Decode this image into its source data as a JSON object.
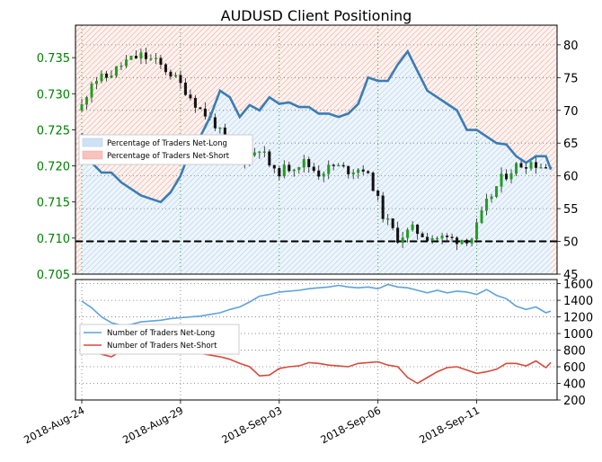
{
  "chart_data": [
    {
      "type": "line+candlestick",
      "title": "AUDUSD Client Positioning",
      "x_tick_labels": [
        "2018-Aug-24",
        "2018-Aug-29",
        "2018-Sep-03",
        "2018-Sep-06",
        "2018-Sep-11"
      ],
      "x_tick_indices": [
        0,
        20,
        40,
        60,
        80
      ],
      "n_periods": 96,
      "left_axis": {
        "ylim": [
          0.705,
          0.7395
        ],
        "ticks": [
          0.705,
          0.71,
          0.715,
          0.72,
          0.725,
          0.73,
          0.735
        ],
        "tick_labels": [
          "0.705",
          "0.710",
          "0.715",
          "0.720",
          "0.725",
          "0.730",
          "0.735"
        ],
        "color": "#008000"
      },
      "right_axis": {
        "ylim": [
          45,
          83
        ],
        "ticks": [
          45,
          50,
          55,
          60,
          65,
          70,
          75,
          80
        ],
        "tick_labels": [
          "45",
          "50",
          "55",
          "60",
          "65",
          "70",
          "75",
          "80"
        ]
      },
      "grid": true,
      "legend": {
        "placement": "center-left",
        "entries": [
          "Percentage of Traders Net-Long",
          "Percentage of Traders Net-Short"
        ]
      },
      "reference_line": {
        "y": 50,
        "style": "dashed",
        "color": "#000000"
      },
      "series": [
        {
          "name": "Percentage of Traders Net-Long",
          "color": "#3a7db5",
          "fill": "#dbe9f7",
          "x": [
            0,
            2,
            4,
            6,
            8,
            10,
            12,
            14,
            16,
            18,
            20,
            22,
            24,
            26,
            28,
            30,
            32,
            34,
            36,
            38,
            40,
            42,
            44,
            46,
            48,
            50,
            52,
            54,
            56,
            58,
            60,
            62,
            64,
            66,
            68,
            70,
            72,
            74,
            76,
            78,
            80,
            82,
            84,
            86,
            88,
            90,
            92,
            94,
            95
          ],
          "values": [
            66.5,
            62.0,
            60.5,
            60.5,
            59.0,
            58.0,
            57.0,
            56.5,
            56.0,
            57.5,
            60.0,
            64.0,
            66.0,
            69.0,
            73.0,
            72.0,
            69.0,
            70.8,
            70.0,
            72.0,
            71.0,
            71.2,
            70.5,
            70.5,
            69.5,
            69.5,
            69.0,
            69.5,
            71.0,
            75.0,
            74.5,
            74.5,
            77.0,
            79.0,
            76.0,
            73.0,
            72.0,
            71.0,
            70.0,
            67.0,
            67.0,
            66.0,
            65.0,
            64.8,
            63.0,
            62.0,
            63.0,
            63.0,
            61.0
          ]
        },
        {
          "name": "Percentage of Traders Net-Short",
          "color": "#e88080",
          "fill": "#fbd9d4"
        },
        {
          "name": "AUDUSD price",
          "kind": "candlestick",
          "up_color": "#1f9e1f",
          "down_color": "#111111",
          "close_anchors_x": [
            0,
            2,
            5,
            9,
            12,
            15,
            18,
            21,
            24,
            27,
            30,
            33,
            36,
            39,
            42,
            45,
            48,
            51,
            54,
            57,
            59,
            61,
            64,
            67,
            70,
            73,
            76,
            79,
            82,
            85,
            88,
            91,
            94,
            95
          ],
          "close_anchors": [
            0.7283,
            0.7318,
            0.7323,
            0.7345,
            0.7353,
            0.7344,
            0.7328,
            0.7305,
            0.7278,
            0.7258,
            0.7222,
            0.7208,
            0.7226,
            0.719,
            0.7198,
            0.7205,
            0.719,
            0.72,
            0.7194,
            0.7197,
            0.7172,
            0.7132,
            0.71,
            0.7112,
            0.7102,
            0.71,
            0.7098,
            0.71,
            0.7148,
            0.7182,
            0.72,
            0.7205,
            0.7198,
            0.7205
          ]
        }
      ]
    },
    {
      "type": "line",
      "right_axis": {
        "ylim": [
          200,
          1650
        ],
        "ticks": [
          200,
          400,
          600,
          800,
          1000,
          1200,
          1400,
          1600
        ],
        "tick_labels": [
          "200",
          "400",
          "600",
          "800",
          "1000",
          "1200",
          "1400",
          "1600"
        ]
      },
      "grid": true,
      "legend": {
        "placement": "center-left",
        "entries": [
          "Number of Traders Net-Long",
          "Number of Traders Net-Short"
        ]
      },
      "series": [
        {
          "name": "Number of Traders Net-Long",
          "color": "#5fa3dc",
          "x": [
            0,
            2,
            4,
            6,
            8,
            10,
            12,
            14,
            16,
            18,
            20,
            22,
            24,
            26,
            28,
            30,
            32,
            34,
            36,
            38,
            40,
            42,
            44,
            46,
            48,
            50,
            52,
            54,
            56,
            58,
            60,
            62,
            64,
            66,
            68,
            70,
            72,
            74,
            76,
            78,
            80,
            82,
            84,
            86,
            88,
            90,
            92,
            94,
            95
          ],
          "values": [
            1390,
            1310,
            1200,
            1130,
            1100,
            1110,
            1140,
            1150,
            1160,
            1180,
            1190,
            1200,
            1210,
            1230,
            1250,
            1290,
            1320,
            1380,
            1450,
            1470,
            1500,
            1510,
            1520,
            1540,
            1550,
            1560,
            1580,
            1560,
            1550,
            1560,
            1540,
            1590,
            1560,
            1550,
            1520,
            1490,
            1520,
            1490,
            1510,
            1500,
            1470,
            1530,
            1460,
            1420,
            1330,
            1290,
            1320,
            1250,
            1270
          ]
        },
        {
          "name": "Number of Traders Net-Short",
          "color": "#d84a3a",
          "x": [
            0,
            2,
            4,
            6,
            8,
            10,
            12,
            14,
            16,
            18,
            20,
            22,
            24,
            26,
            28,
            30,
            32,
            34,
            36,
            38,
            40,
            42,
            44,
            46,
            48,
            50,
            52,
            54,
            56,
            58,
            60,
            62,
            64,
            66,
            68,
            70,
            72,
            74,
            76,
            78,
            80,
            82,
            84,
            86,
            88,
            90,
            92,
            94,
            95
          ],
          "values": [
            770,
            780,
            750,
            720,
            790,
            800,
            830,
            830,
            800,
            840,
            820,
            790,
            760,
            740,
            720,
            690,
            640,
            600,
            490,
            500,
            580,
            600,
            610,
            650,
            640,
            620,
            610,
            600,
            640,
            650,
            660,
            620,
            600,
            470,
            400,
            470,
            540,
            590,
            600,
            560,
            520,
            540,
            570,
            640,
            640,
            610,
            670,
            590,
            650
          ]
        }
      ]
    }
  ]
}
